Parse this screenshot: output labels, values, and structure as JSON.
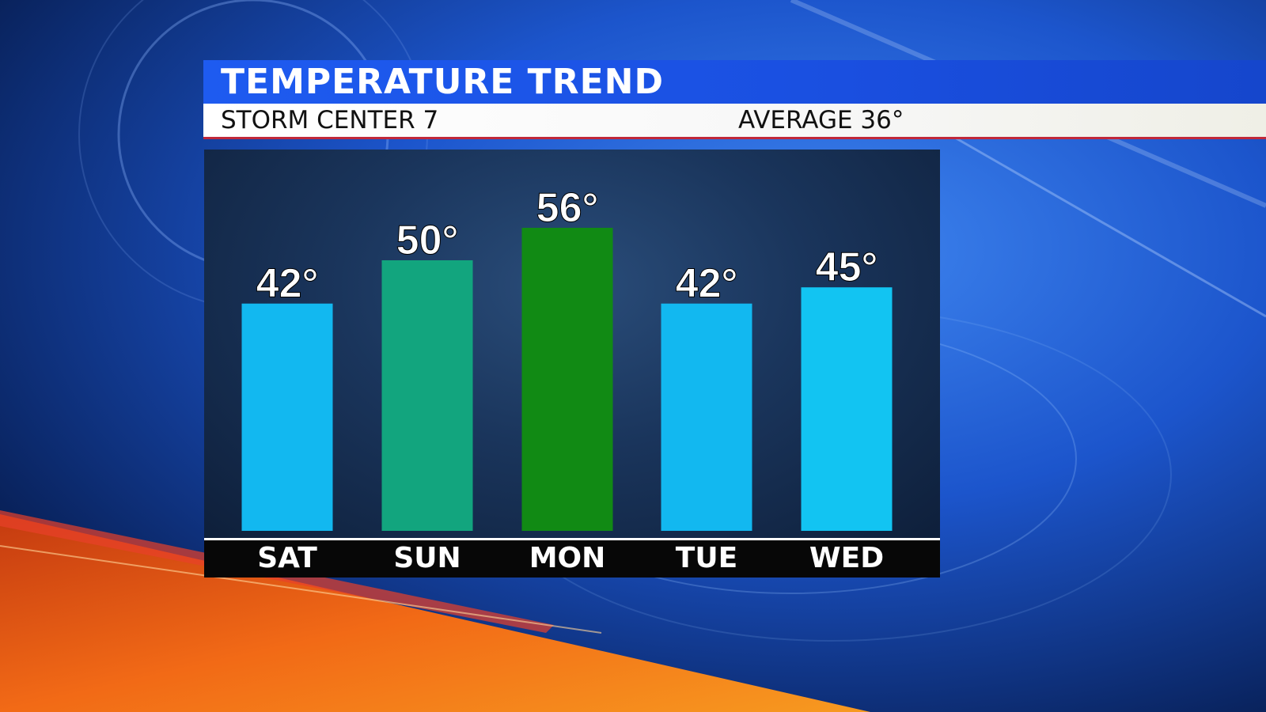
{
  "header": {
    "title": "TEMPERATURE TREND",
    "station": "STORM CENTER 7",
    "average": "AVERAGE 36°"
  },
  "chart_data": {
    "type": "bar",
    "categories": [
      "SAT",
      "SUN",
      "MON",
      "TUE",
      "WED"
    ],
    "values": [
      42,
      50,
      56,
      42,
      45
    ],
    "value_labels": [
      "42°",
      "50°",
      "56°",
      "42°",
      "45°"
    ],
    "bar_colors": [
      "#12b8f0",
      "#12a57e",
      "#118a14",
      "#12b8f0",
      "#12c4f2"
    ],
    "title": "TEMPERATURE TREND",
    "xlabel": "",
    "ylabel": "",
    "grid": false
  },
  "colors": {
    "title_bar": "#1e5bf0",
    "accent_red": "#c0283a",
    "orange_swoosh": "#f26a16"
  }
}
